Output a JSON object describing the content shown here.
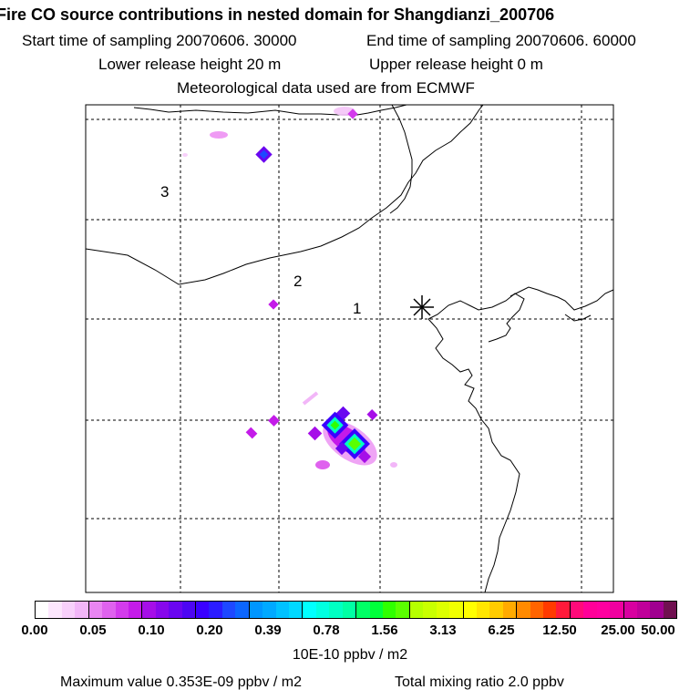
{
  "title": "Fire CO source contributions in nested domain for Shangdianzi_200706",
  "sampling": {
    "start": "Start time of sampling 20070606. 30000",
    "end": "End time of sampling 20070606. 60000"
  },
  "release": {
    "lower": "Lower release height   20 m",
    "upper": "Upper release height    0 m"
  },
  "met_source": "Meteorological data used are from ECMWF",
  "map": {
    "receptor_marker": "asterisk",
    "labels": [
      "1",
      "2",
      "3"
    ],
    "border_color": "#000000",
    "grid_style": "dashed"
  },
  "colorbar": {
    "ticks": [
      "0.00",
      "0.05",
      "0.10",
      "0.20",
      "0.39",
      "0.78",
      "1.56",
      "3.13",
      "6.25",
      "12.50",
      "25.00",
      "50.00"
    ],
    "colors": [
      "#ffffff",
      "#fce6fd",
      "#f8d0fb",
      "#f2b6f8",
      "#e985f2",
      "#df62ee",
      "#d33bec",
      "#c41be9",
      "#a60ee8",
      "#8708ec",
      "#6a06f0",
      "#4d06f3",
      "#3a00ff",
      "#2b1cff",
      "#1e48ff",
      "#0c66ff",
      "#0096ff",
      "#00a9ff",
      "#00c2ff",
      "#00d8ff",
      "#00ffff",
      "#00ffe1",
      "#00ffc3",
      "#00ffa4",
      "#00ff66",
      "#00ff3a",
      "#2fff00",
      "#5aff00",
      "#b6ff00",
      "#c9ff00",
      "#ddff00",
      "#f1ff00",
      "#ffff00",
      "#ffe600",
      "#ffcc00",
      "#ffaa00",
      "#ff8a00",
      "#ff6400",
      "#ff3a00",
      "#ff1a3a",
      "#ff0a7a",
      "#ff0099",
      "#ff00a0",
      "#f000a0",
      "#d800a0",
      "#c0009a",
      "#a00090",
      "#701050"
    ],
    "unit": "10E-10 ppbv / m2"
  },
  "footer": {
    "max_value": "Maximum value  0.353E-09 ppbv / m2",
    "total_mixing": "Total mixing ratio        2.0 ppbv"
  }
}
